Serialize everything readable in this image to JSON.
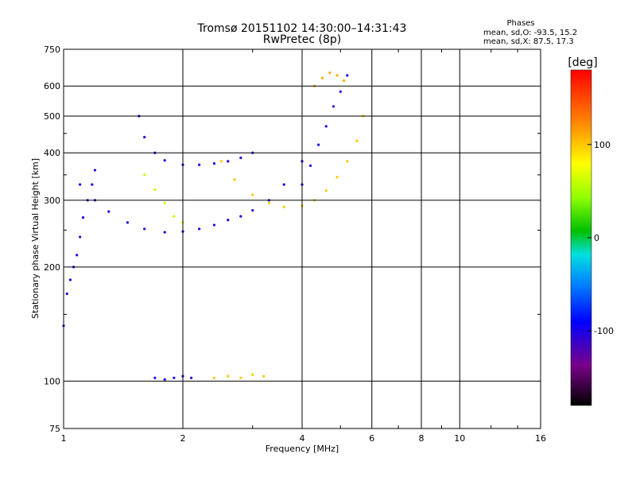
{
  "chart_data": {
    "type": "scatter",
    "title": "Tromsø 20151102 14:30:00–14:31:43",
    "subtitle": "RwPretec (8p)",
    "xlabel": "Frequency [MHz]",
    "ylabel": "Stationary phase Virtual Height [km]",
    "x_scale": "log",
    "y_scale": "log",
    "xlim": [
      1,
      16
    ],
    "ylim": [
      75,
      750
    ],
    "x_ticks": [
      1,
      2,
      4,
      6,
      8,
      10,
      16
    ],
    "x_tick_labels": [
      "1",
      "2",
      "4",
      "6",
      "8",
      "10",
      "16"
    ],
    "y_ticks": [
      75,
      100,
      200,
      300,
      400,
      500,
      600,
      750
    ],
    "y_tick_labels": [
      "75",
      "100",
      "200",
      "300",
      "400",
      "500",
      "600",
      "750"
    ],
    "grid": true,
    "phases": {
      "title": "Phases",
      "line_o": "mean, sd,O: -93.5, 15.2",
      "line_x": "mean, sd,X:  87.5, 17.3"
    },
    "colorbar": {
      "label": "[deg]",
      "range": [
        -180,
        180
      ],
      "ticks": [
        100,
        0,
        -100
      ],
      "tick_labels": [
        "100",
        "0",
        "-100"
      ]
    },
    "series": [
      {
        "phase": -100,
        "x": [
          1.0,
          1.02,
          1.04,
          1.06,
          1.08,
          1.1,
          1.12,
          1.15,
          1.18,
          1.2
        ],
        "y": [
          140,
          170,
          185,
          200,
          215,
          240,
          270,
          300,
          330,
          360
        ]
      },
      {
        "phase": -100,
        "x": [
          1.1,
          1.2,
          1.3,
          1.45,
          1.6,
          1.8,
          2.0,
          2.2,
          2.4,
          2.6,
          2.8,
          3.0,
          3.3,
          3.6,
          4.0
        ],
        "y": [
          330,
          300,
          280,
          262,
          252,
          247,
          248,
          252,
          258,
          266,
          272,
          282,
          300,
          330,
          380
        ]
      },
      {
        "phase": -100,
        "x": [
          1.55,
          1.6,
          1.7,
          1.8,
          2.0,
          2.2,
          2.4,
          2.6,
          2.8,
          3.0
        ],
        "y": [
          500,
          440,
          400,
          382,
          372,
          372,
          375,
          380,
          388,
          400
        ]
      },
      {
        "phase": -100,
        "x": [
          4.0,
          4.2,
          4.4,
          4.6,
          4.8,
          5.0,
          5.2
        ],
        "y": [
          330,
          370,
          420,
          470,
          530,
          580,
          640
        ]
      },
      {
        "phase": 100,
        "x": [
          2.5,
          2.7,
          3.0,
          3.3,
          3.6,
          4.0,
          4.3,
          4.6,
          4.9,
          5.2,
          5.5,
          5.7
        ],
        "y": [
          380,
          340,
          310,
          295,
          288,
          290,
          300,
          318,
          345,
          380,
          430,
          500
        ]
      },
      {
        "phase": 110,
        "x": [
          4.3,
          4.5,
          4.7,
          4.9,
          5.1
        ],
        "y": [
          600,
          630,
          650,
          640,
          620
        ]
      },
      {
        "phase": 100,
        "x": [
          2.4,
          2.6,
          2.8,
          3.0,
          3.2
        ],
        "y": [
          102,
          103,
          102,
          104,
          103
        ]
      },
      {
        "phase": -100,
        "x": [
          1.7,
          1.8,
          1.9,
          2.0,
          2.1
        ],
        "y": [
          102,
          101,
          102,
          103,
          102
        ]
      },
      {
        "phase": 60,
        "x": [
          1.6,
          1.7,
          1.8,
          1.9,
          2.0
        ],
        "y": [
          350,
          320,
          295,
          272,
          262
        ]
      }
    ]
  }
}
